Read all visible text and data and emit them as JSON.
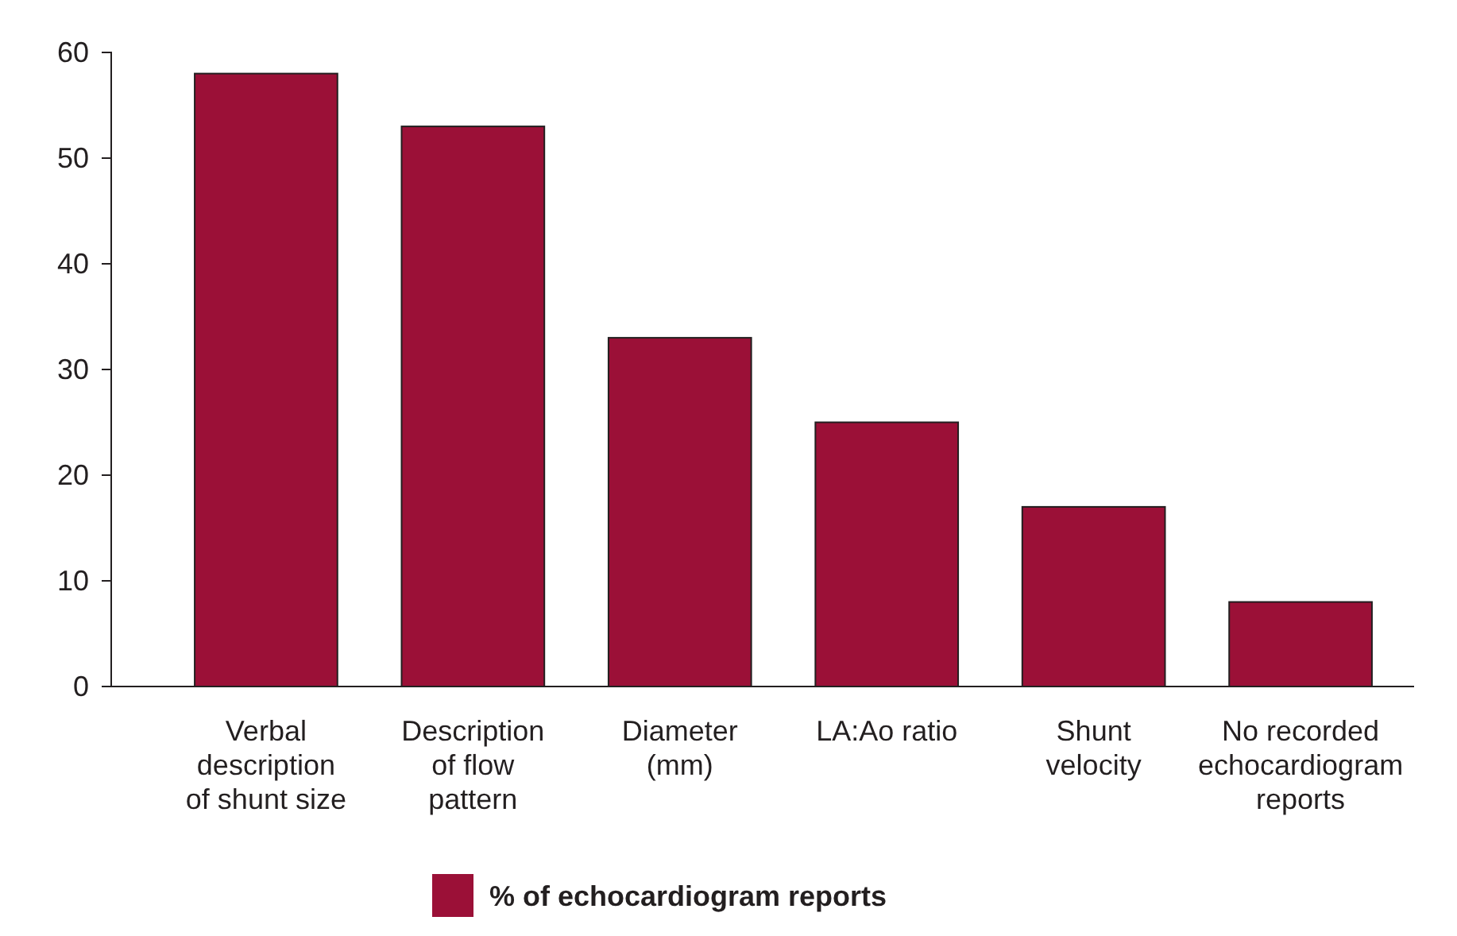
{
  "chart_data": {
    "type": "bar",
    "categories": [
      "Verbal description of shunt size",
      "Description of flow pattern",
      "Diameter (mm)",
      "LA:Ao ratio",
      "Shunt velocity",
      "No recorded echocardiogram reports"
    ],
    "series": [
      {
        "name": "% of echocardiogram reports",
        "color": "#9b1037",
        "values": [
          58,
          53,
          33,
          25,
          17,
          8
        ]
      }
    ],
    "ylim": [
      0,
      60
    ],
    "yticks": [
      0,
      10,
      20,
      30,
      40,
      50,
      60
    ],
    "grid": false,
    "legend": "bottom"
  }
}
